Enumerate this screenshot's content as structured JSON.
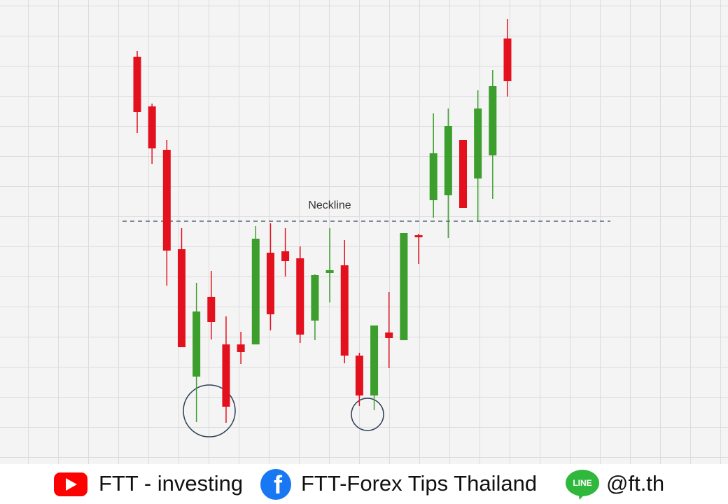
{
  "chart_data": {
    "type": "candlestick",
    "ylim": [
      0,
      660
    ],
    "up_color": "#3c9e2c",
    "down_color": "#e3101e",
    "neckline": {
      "label": "Neckline",
      "value": 344
    },
    "candles": [
      {
        "open": 579,
        "high": 587,
        "low": 470,
        "close": 500
      },
      {
        "open": 508,
        "high": 512,
        "low": 426,
        "close": 448
      },
      {
        "open": 446,
        "high": 460,
        "low": 252,
        "close": 302
      },
      {
        "open": 304,
        "high": 334,
        "low": 164,
        "close": 164
      },
      {
        "open": 122,
        "high": 256,
        "low": 57,
        "close": 215
      },
      {
        "open": 236,
        "high": 273,
        "low": 175,
        "close": 200
      },
      {
        "open": 168,
        "high": 208,
        "low": 56,
        "close": 79
      },
      {
        "open": 168,
        "high": 186,
        "low": 140,
        "close": 157
      },
      {
        "open": 168,
        "high": 337,
        "low": 168,
        "close": 319
      },
      {
        "open": 299,
        "high": 341,
        "low": 188,
        "close": 211
      },
      {
        "open": 301,
        "high": 334,
        "low": 265,
        "close": 287
      },
      {
        "open": 291,
        "high": 308,
        "low": 170,
        "close": 182
      },
      {
        "open": 202,
        "high": 268,
        "low": 174,
        "close": 267
      },
      {
        "open": 270,
        "high": 334,
        "low": 228,
        "close": 274
      },
      {
        "open": 281,
        "high": 317,
        "low": 141,
        "close": 152
      },
      {
        "open": 152,
        "high": 156,
        "low": 80,
        "close": 95
      },
      {
        "open": 95,
        "high": 195,
        "low": 74,
        "close": 195
      },
      {
        "open": 185,
        "high": 243,
        "low": 134,
        "close": 177
      },
      {
        "open": 174,
        "high": 327,
        "low": 174,
        "close": 327
      },
      {
        "open": 324,
        "high": 326,
        "low": 283,
        "close": 321
      },
      {
        "open": 374,
        "high": 498,
        "low": 349,
        "close": 441
      },
      {
        "open": 381,
        "high": 505,
        "low": 320,
        "close": 480
      },
      {
        "open": 460,
        "high": 460,
        "low": 363,
        "close": 363
      },
      {
        "open": 405,
        "high": 531,
        "low": 343,
        "close": 505
      },
      {
        "open": 438,
        "high": 560,
        "low": 376,
        "close": 537
      },
      {
        "open": 605,
        "high": 633,
        "low": 522,
        "close": 544
      }
    ]
  },
  "footer": {
    "youtube": "FTT - investing",
    "facebook": "FTT-Forex Tips Thailand",
    "line_icon": "LINE",
    "line": "@ft.th"
  }
}
